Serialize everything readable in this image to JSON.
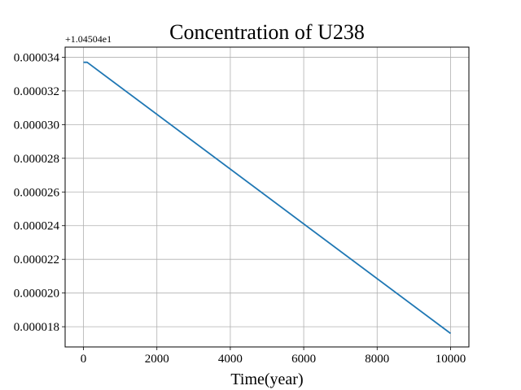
{
  "chart_data": {
    "type": "line",
    "title": "Concentration of U238",
    "xlabel": "Time(year)",
    "ylabel": "",
    "offset_text": "+1.04504e1",
    "xlim": [
      -500,
      10500
    ],
    "ylim": [
      1.68e-05,
      3.46e-05
    ],
    "x_ticks": [
      0,
      2000,
      4000,
      6000,
      8000,
      10000
    ],
    "x_tick_labels": [
      "0",
      "2000",
      "4000",
      "6000",
      "8000",
      "10000"
    ],
    "y_ticks": [
      1.8e-05,
      2e-05,
      2.2e-05,
      2.4e-05,
      2.6e-05,
      2.8e-05,
      3e-05,
      3.2e-05,
      3.4e-05
    ],
    "y_tick_labels": [
      "0.000018",
      "0.000020",
      "0.000022",
      "0.000024",
      "0.000026",
      "0.000028",
      "0.000030",
      "0.000032",
      "0.000034"
    ],
    "grid": true,
    "series": [
      {
        "color": "#1f77b4",
        "x": [
          0,
          100,
          10000
        ],
        "y": [
          3.37e-05,
          3.37e-05,
          1.76e-05
        ]
      }
    ]
  }
}
